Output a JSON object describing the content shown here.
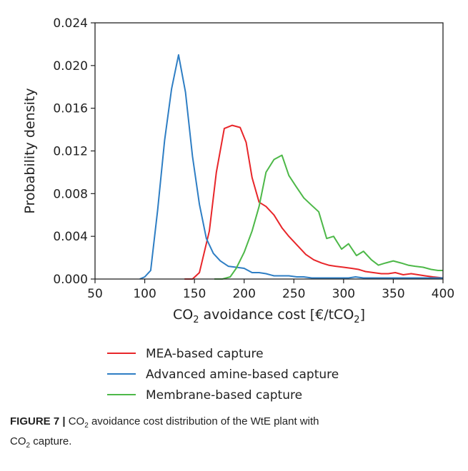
{
  "chart_data": {
    "type": "line",
    "xlabel_main": "CO",
    "xlabel_sub1": "2",
    "xlabel_mid": " avoidance cost [€/tCO",
    "xlabel_sub2": "2",
    "xlabel_end": "]",
    "ylabel": "Probability density",
    "xlim": [
      50,
      400
    ],
    "ylim": [
      0,
      0.024
    ],
    "xticks": [
      "50",
      "100",
      "150",
      "200",
      "250",
      "300",
      "350",
      "400"
    ],
    "yticks": [
      "0.000",
      "0.004",
      "0.008",
      "0.012",
      "0.016",
      "0.020",
      "0.024"
    ],
    "grid": false,
    "legend_position": "below",
    "series": [
      {
        "name": "MEA-based capture",
        "color": "#e8262a",
        "x": [
          140,
          148,
          155,
          165,
          172,
          180,
          188,
          196,
          202,
          208,
          215,
          222,
          230,
          238,
          245,
          255,
          262,
          270,
          278,
          285,
          292,
          300,
          308,
          315,
          322,
          330,
          338,
          345,
          352,
          360,
          368,
          375,
          382,
          390,
          400
        ],
        "y": [
          0,
          0,
          0.0006,
          0.0045,
          0.01,
          0.0141,
          0.0144,
          0.0142,
          0.0128,
          0.0095,
          0.0072,
          0.0068,
          0.006,
          0.0048,
          0.004,
          0.003,
          0.0023,
          0.0018,
          0.0015,
          0.0013,
          0.0012,
          0.0011,
          0.001,
          0.0009,
          0.0007,
          0.0006,
          0.0005,
          0.0005,
          0.0006,
          0.0004,
          0.0005,
          0.0004,
          0.0003,
          0.0002,
          0.0001
        ]
      },
      {
        "name": "Advanced amine-based capture",
        "color": "#2e7ec4",
        "x": [
          95,
          100,
          106,
          113,
          120,
          127,
          134,
          141,
          148,
          155,
          162,
          169,
          176,
          184,
          192,
          200,
          208,
          215,
          222,
          230,
          238,
          245,
          253,
          260,
          268,
          275,
          283,
          290,
          298,
          305,
          312,
          320,
          327,
          335,
          342,
          350,
          358,
          365,
          372,
          380,
          388,
          395,
          400
        ],
        "y": [
          0,
          0.0002,
          0.0008,
          0.0065,
          0.013,
          0.0178,
          0.021,
          0.0175,
          0.0115,
          0.007,
          0.0038,
          0.0024,
          0.0017,
          0.0012,
          0.0011,
          0.001,
          0.0006,
          0.0006,
          0.0005,
          0.0003,
          0.0003,
          0.0003,
          0.0002,
          0.0002,
          0.0001,
          0.0001,
          0.0001,
          0.0001,
          0.0001,
          0.0001,
          0.0002,
          0.0001,
          0.0001,
          0.0001,
          0.0001,
          0.0001,
          0.0001,
          0.0001,
          0.0001,
          0.0001,
          0.0001,
          0.0001,
          0.0001
        ]
      },
      {
        "name": "Membrane-based capture",
        "color": "#4db848",
        "x": [
          170,
          178,
          186,
          192,
          200,
          208,
          215,
          222,
          230,
          238,
          245,
          252,
          260,
          268,
          275,
          283,
          290,
          298,
          305,
          313,
          320,
          328,
          335,
          342,
          350,
          358,
          365,
          372,
          380,
          388,
          395,
          400
        ],
        "y": [
          0,
          0,
          0.0002,
          0.001,
          0.0025,
          0.0045,
          0.0068,
          0.01,
          0.0112,
          0.0116,
          0.0097,
          0.0087,
          0.0076,
          0.0069,
          0.0063,
          0.0038,
          0.004,
          0.0028,
          0.0033,
          0.0022,
          0.0026,
          0.0018,
          0.0013,
          0.0015,
          0.0017,
          0.0015,
          0.0013,
          0.0012,
          0.0011,
          0.0009,
          0.0008,
          0.0008
        ]
      }
    ]
  },
  "caption": {
    "label": "FIGURE 7 |",
    "text_a": " CO",
    "sub_a": "2",
    "text_b": " avoidance cost distribution of the WtE plant with",
    "text_c": "CO",
    "sub_c": "2",
    "text_d": " capture."
  }
}
